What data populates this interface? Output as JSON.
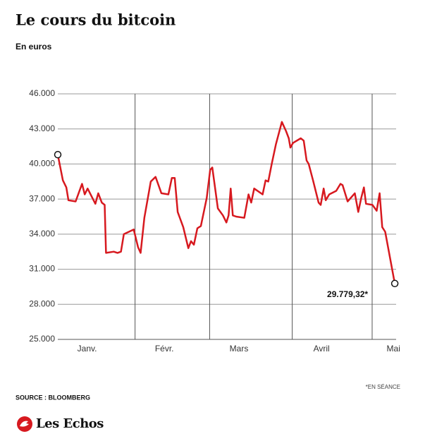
{
  "chart_data": {
    "type": "line",
    "title": "Le cours du bitcoin",
    "subtitle": "En euros",
    "source": "SOURCE : BLOOMBERG",
    "footnote": "*EN SÉANCE",
    "brand": "Les Echos",
    "xlim": [
      3,
      130
    ],
    "xticks": [
      {
        "value": 14,
        "label": "Janv."
      },
      {
        "value": 43,
        "label": "Févr."
      },
      {
        "value": 71,
        "label": "Mars"
      },
      {
        "value": 102,
        "label": "Avril"
      },
      {
        "value": 129,
        "label": "Mai"
      }
    ],
    "xgrid": [
      32,
      60,
      91,
      121
    ],
    "ylim": [
      25000,
      46000
    ],
    "yticks": [
      {
        "value": 25000,
        "label": "25.000"
      },
      {
        "value": 28000,
        "label": "28.000"
      },
      {
        "value": 31000,
        "label": "31.000"
      },
      {
        "value": 34000,
        "label": "34.000"
      },
      {
        "value": 37000,
        "label": "37.000"
      },
      {
        "value": 40000,
        "label": "40.000"
      },
      {
        "value": 43000,
        "label": "43.000"
      },
      {
        "value": 46000,
        "label": "46.000"
      }
    ],
    "grid": true,
    "endpoint_markers": true,
    "series": [
      {
        "name": null,
        "color": "#d7191f",
        "x": [
          3,
          4.9,
          6.2,
          7.0,
          9.7,
          12.1,
          13.1,
          14.2,
          17.1,
          18.2,
          19.5,
          20.6,
          21.1,
          24.0,
          25.4,
          26.7,
          27.8,
          31.5,
          33.1,
          34.1,
          35.5,
          37.9,
          39.7,
          41.9,
          44.5,
          45.8,
          46.9,
          48.0,
          50.1,
          52.0,
          53.0,
          54.1,
          55.4,
          56.7,
          58.9,
          60.2,
          61.0,
          63.1,
          65.0,
          66.3,
          67.1,
          67.9,
          68.7,
          70.0,
          73.0,
          74.6,
          75.6,
          76.7,
          79.9,
          81.0,
          82.0,
          83.3,
          84.9,
          87.1,
          88.7,
          89.7,
          90.3,
          91.3,
          94.2,
          95.3,
          96.4,
          97.2,
          98.8,
          100.9,
          101.7,
          102.8,
          103.6,
          104.9,
          107.5,
          109.1,
          109.9,
          111.8,
          114.5,
          115.8,
          116.9,
          117.9,
          118.7,
          121.1,
          122.7,
          123.8,
          124.8,
          125.9,
          129.5
        ],
        "values": [
          40800,
          38600,
          38000,
          36900,
          36800,
          38300,
          37400,
          37900,
          36600,
          37500,
          36700,
          36500,
          32400,
          32500,
          32400,
          32500,
          34000,
          34400,
          32900,
          32400,
          35400,
          38500,
          38900,
          37500,
          37400,
          38800,
          38800,
          35900,
          34600,
          32800,
          33400,
          33100,
          34500,
          34700,
          37100,
          39500,
          39700,
          36200,
          35600,
          35000,
          35600,
          37900,
          35600,
          35500,
          35400,
          37400,
          36700,
          37900,
          37400,
          38600,
          38500,
          40000,
          41700,
          43600,
          42800,
          42200,
          41400,
          41800,
          42200,
          42000,
          40300,
          40000,
          38600,
          36700,
          36500,
          37900,
          36900,
          37400,
          37700,
          38300,
          38200,
          36800,
          37500,
          35900,
          37100,
          38000,
          36600,
          36500,
          36000,
          37500,
          34600,
          34200,
          29779.32
        ],
        "value_labels": [
          null,
          null,
          null,
          null,
          null,
          null,
          null,
          null,
          null,
          null,
          null,
          null,
          null,
          null,
          null,
          null,
          null,
          null,
          null,
          null,
          null,
          null,
          null,
          null,
          null,
          null,
          null,
          null,
          null,
          null,
          null,
          null,
          null,
          null,
          null,
          null,
          null,
          null,
          null,
          null,
          null,
          null,
          null,
          null,
          null,
          null,
          null,
          null,
          null,
          null,
          null,
          null,
          null,
          null,
          null,
          null,
          null,
          null,
          null,
          null,
          null,
          null,
          null,
          null,
          null,
          null,
          null,
          null,
          null,
          null,
          null,
          null,
          null,
          null,
          null,
          null,
          null,
          null,
          null,
          null,
          null,
          null,
          "29.779,32*"
        ]
      }
    ]
  }
}
